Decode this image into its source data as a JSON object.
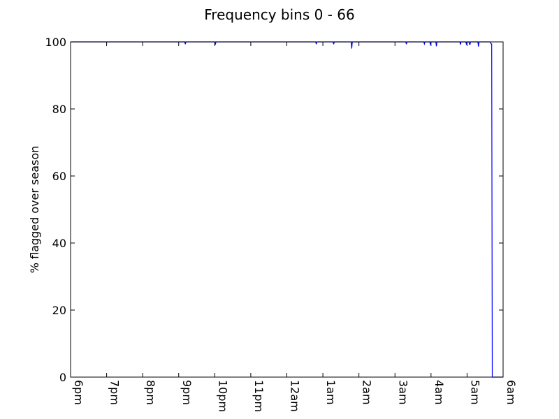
{
  "chart_data": {
    "type": "line",
    "title": "Frequency bins 0 - 66",
    "xlabel": "",
    "ylabel": "% flagged over season",
    "x_ticks": [
      "6pm",
      "7pm",
      "8pm",
      "9pm",
      "10pm",
      "11pm",
      "12am",
      "1am",
      "2am",
      "3am",
      "4am",
      "5am",
      "6am"
    ],
    "y_ticks": [
      0,
      20,
      40,
      60,
      80,
      100
    ],
    "xlim": [
      "6pm",
      "6am"
    ],
    "ylim": [
      0,
      100
    ],
    "grid": false,
    "colors": {
      "series": "#0000ff",
      "axis": "#000000",
      "background": "#ffffff"
    },
    "series": [
      {
        "x": [
          "6pm",
          "9:10pm",
          "9:11pm",
          "9:12pm",
          "10:00pm",
          "10:01pm",
          "10:02pm",
          "12:48am",
          "12:49am",
          "12:50am",
          "1:17am",
          "1:18am",
          "1:19am",
          "1:47am",
          "1:48am",
          "1:49am",
          "3:18am",
          "3:19am",
          "3:20am",
          "3:48am",
          "3:49am",
          "3:50am",
          "3:58am",
          "3:59am",
          "4:00am",
          "4:08am",
          "4:09am",
          "4:10am",
          "4:48am",
          "4:49am",
          "4:50am",
          "4:58am",
          "4:59am",
          "5:00am",
          "5:03am",
          "5:04am",
          "5:05am",
          "5:06am",
          "5:18am",
          "5:19am",
          "5:20am",
          "5:38am",
          "5:40am",
          "5:41am",
          "5:42am",
          "6am"
        ],
        "y": [
          100,
          100,
          99.3,
          100,
          100,
          99.2,
          100,
          100,
          99.3,
          100,
          100,
          99.3,
          100,
          100,
          98,
          100,
          100,
          99.3,
          100,
          100,
          99.4,
          100,
          100,
          99.2,
          100,
          100,
          98.7,
          100,
          100,
          99.2,
          100,
          100,
          99.2,
          100,
          100,
          99.3,
          99.3,
          100,
          100,
          98.6,
          100,
          100,
          99.4,
          99.4,
          0,
          0
        ]
      }
    ]
  }
}
